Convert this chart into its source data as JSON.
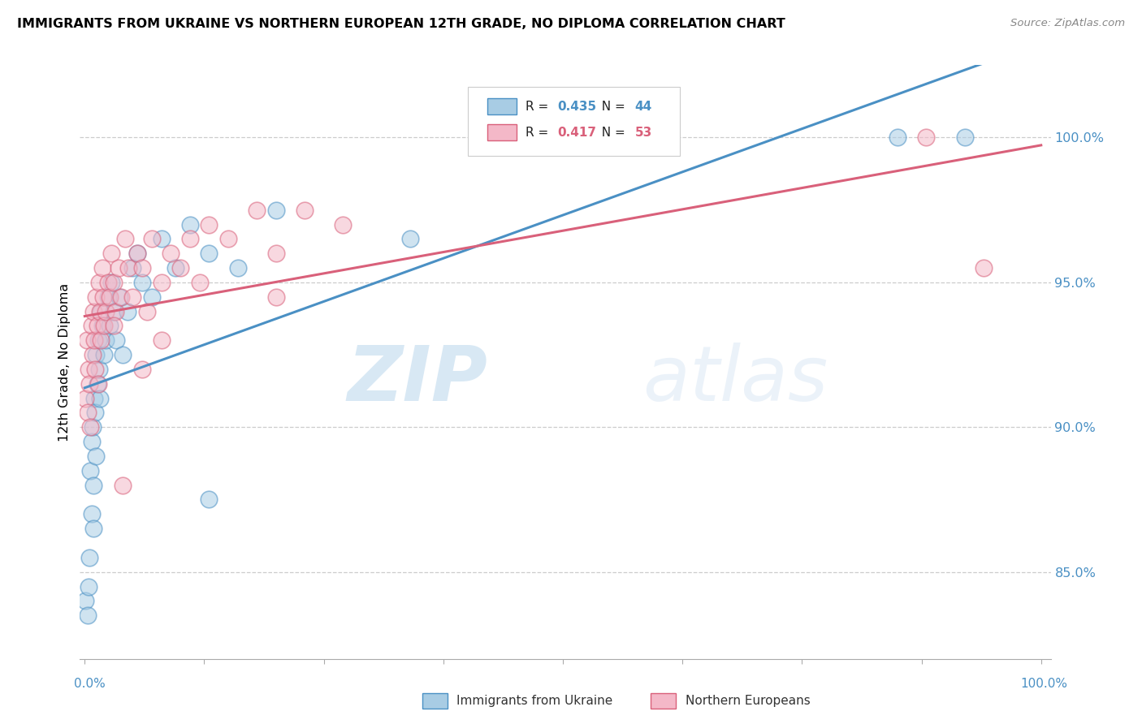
{
  "title": "IMMIGRANTS FROM UKRAINE VS NORTHERN EUROPEAN 12TH GRADE, NO DIPLOMA CORRELATION CHART",
  "source": "Source: ZipAtlas.com",
  "ylabel": "12th Grade, No Diploma",
  "legend_blue": "Immigrants from Ukraine",
  "legend_pink": "Northern Europeans",
  "r_blue": 0.435,
  "n_blue": 44,
  "r_pink": 0.417,
  "n_pink": 53,
  "color_blue": "#a8cce4",
  "color_pink": "#f4b8c8",
  "line_blue": "#4a90c4",
  "line_pink": "#d9607a",
  "watermark_zip": "ZIP",
  "watermark_atlas": "atlas",
  "ytick_positions": [
    85.0,
    90.0,
    95.0,
    100.0
  ],
  "ytick_labels": [
    "85.0%",
    "90.0%",
    "95.0%",
    "100.0%"
  ],
  "ylim": [
    82.0,
    102.5
  ],
  "xlim": [
    -0.005,
    1.01
  ],
  "blue_x": [
    0.001,
    0.003,
    0.004,
    0.005,
    0.006,
    0.007,
    0.007,
    0.008,
    0.009,
    0.009,
    0.01,
    0.011,
    0.012,
    0.012,
    0.013,
    0.014,
    0.015,
    0.016,
    0.017,
    0.018,
    0.02,
    0.022,
    0.024,
    0.026,
    0.028,
    0.03,
    0.033,
    0.036,
    0.04,
    0.045,
    0.05,
    0.055,
    0.06,
    0.07,
    0.08,
    0.095,
    0.11,
    0.13,
    0.16,
    0.2,
    0.13,
    0.34,
    0.85,
    0.92
  ],
  "blue_y": [
    84.0,
    83.5,
    84.5,
    85.5,
    88.5,
    89.5,
    87.0,
    90.0,
    86.5,
    88.0,
    91.0,
    90.5,
    89.0,
    92.5,
    91.5,
    93.0,
    92.0,
    91.0,
    94.0,
    93.5,
    92.5,
    93.0,
    94.5,
    93.5,
    95.0,
    94.0,
    93.0,
    94.5,
    92.5,
    94.0,
    95.5,
    96.0,
    95.0,
    94.5,
    96.5,
    95.5,
    97.0,
    96.0,
    95.5,
    97.5,
    87.5,
    96.5,
    100.0,
    100.0
  ],
  "pink_x": [
    0.001,
    0.002,
    0.003,
    0.004,
    0.005,
    0.006,
    0.007,
    0.008,
    0.009,
    0.01,
    0.011,
    0.012,
    0.013,
    0.014,
    0.015,
    0.016,
    0.017,
    0.018,
    0.019,
    0.02,
    0.022,
    0.024,
    0.026,
    0.028,
    0.03,
    0.032,
    0.035,
    0.038,
    0.042,
    0.046,
    0.05,
    0.055,
    0.06,
    0.065,
    0.07,
    0.08,
    0.09,
    0.1,
    0.11,
    0.12,
    0.13,
    0.15,
    0.18,
    0.2,
    0.23,
    0.27,
    0.03,
    0.04,
    0.06,
    0.08,
    0.88,
    0.94,
    0.2
  ],
  "pink_y": [
    91.0,
    93.0,
    90.5,
    92.0,
    91.5,
    90.0,
    93.5,
    92.5,
    94.0,
    93.0,
    92.0,
    94.5,
    93.5,
    91.5,
    95.0,
    94.0,
    93.0,
    95.5,
    94.5,
    93.5,
    94.0,
    95.0,
    94.5,
    96.0,
    95.0,
    94.0,
    95.5,
    94.5,
    96.5,
    95.5,
    94.5,
    96.0,
    95.5,
    94.0,
    96.5,
    95.0,
    96.0,
    95.5,
    96.5,
    95.0,
    97.0,
    96.5,
    97.5,
    96.0,
    97.5,
    97.0,
    93.5,
    88.0,
    92.0,
    93.0,
    100.0,
    95.5,
    94.5
  ]
}
